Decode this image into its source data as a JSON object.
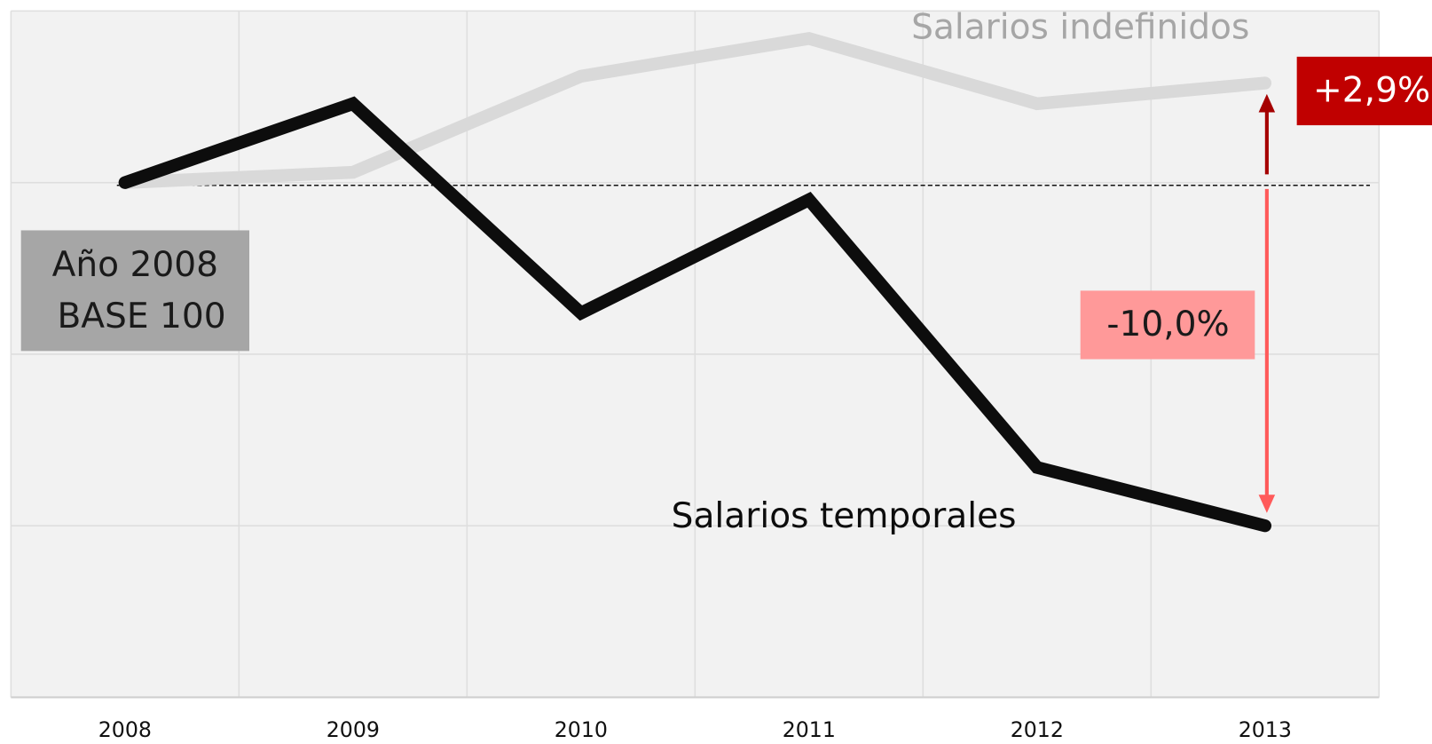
{
  "chart_data": {
    "type": "line",
    "categories": [
      "2008",
      "2009",
      "2010",
      "2011",
      "2012",
      "2013"
    ],
    "series": [
      {
        "name": "Salarios indefinidos",
        "color": "#d9d9d9",
        "values": [
          100,
          100.3,
          103.1,
          104.2,
          102.3,
          102.9
        ]
      },
      {
        "name": "Salarios temporales",
        "color": "#0d0d0d",
        "values": [
          100,
          102.3,
          96.2,
          99.5,
          91.7,
          90.0
        ]
      }
    ],
    "ylim": [
      85,
      105
    ],
    "yticks": [
      85,
      90,
      95,
      100,
      105
    ],
    "show_y_tick_labels": false,
    "grid": true,
    "baseline": 100,
    "base_label": [
      "Año 2008",
      "BASE 100"
    ],
    "change_labels": [
      "+2,9%",
      "-10,0%"
    ]
  }
}
